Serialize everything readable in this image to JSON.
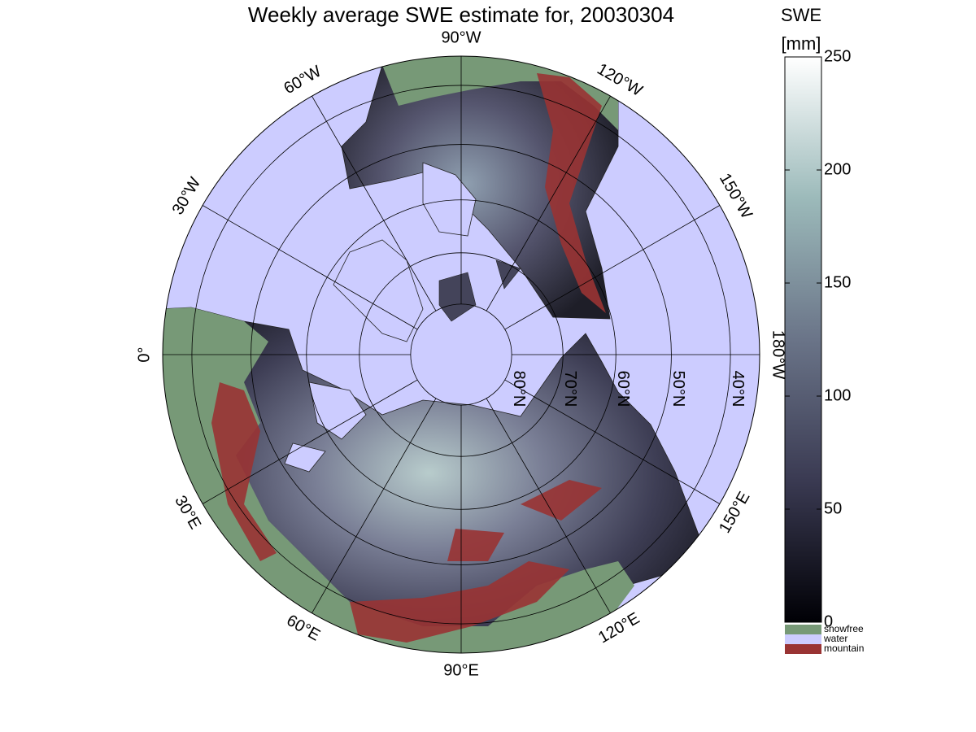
{
  "map": {
    "title": "Weekly average SWE estimate for, 20030304",
    "longitude_labels": [
      {
        "value": -90,
        "label": "90°W"
      },
      {
        "value": -60,
        "label": "60°W"
      },
      {
        "value": -30,
        "label": "30°W"
      },
      {
        "value": 0,
        "label": "0°"
      },
      {
        "value": 30,
        "label": "30°E"
      },
      {
        "value": 60,
        "label": "60°E"
      },
      {
        "value": 90,
        "label": "90°E"
      },
      {
        "value": 120,
        "label": "120°E"
      },
      {
        "value": 150,
        "label": "150°E"
      },
      {
        "value": -180,
        "label": "180°W"
      },
      {
        "value": -150,
        "label": "150°W"
      },
      {
        "value": -120,
        "label": "120°W"
      }
    ],
    "latitude_circles": [
      {
        "value": 80,
        "label": "80°N"
      },
      {
        "value": 70,
        "label": "70°N"
      },
      {
        "value": 60,
        "label": "60°N"
      },
      {
        "value": 50,
        "label": "50°N"
      },
      {
        "value": 40,
        "label": "40°N"
      }
    ],
    "colorbar": {
      "title": "SWE",
      "unit": "[mm]",
      "lim": [
        0,
        250
      ],
      "ticks": [
        0,
        50,
        100,
        150,
        200,
        250
      ],
      "classes": [
        {
          "name": "snowfree",
          "color": "#779977"
        },
        {
          "name": "water",
          "color": "#ccccff"
        },
        {
          "name": "mountain",
          "color": "#993333"
        }
      ]
    }
  }
}
